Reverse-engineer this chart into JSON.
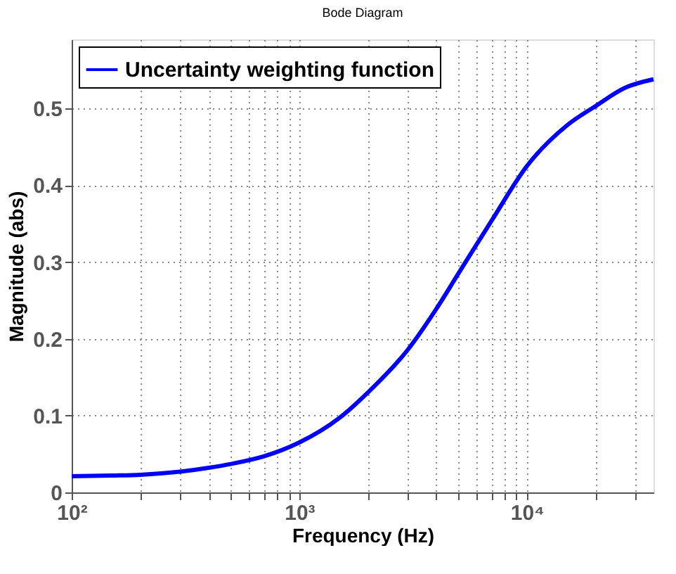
{
  "chart_data": {
    "type": "line",
    "title": "Bode Diagram",
    "xlabel": "Frequency  (Hz)",
    "ylabel": "Magnitude (abs)",
    "x": [
      100,
      150,
      200,
      300,
      400,
      500,
      700,
      1000,
      1500,
      2000,
      3000,
      4000,
      5000,
      7000,
      10000,
      15000,
      20000,
      27000,
      36000
    ],
    "series": [
      {
        "name": "Uncertainty weighting function",
        "color": "#0000ff",
        "values": [
          0.021,
          0.022,
          0.023,
          0.027,
          0.032,
          0.037,
          0.047,
          0.065,
          0.097,
          0.13,
          0.186,
          0.239,
          0.285,
          0.354,
          0.425,
          0.478,
          0.503,
          0.527,
          0.538
        ]
      }
    ],
    "log": "x",
    "xlim": [
      100,
      36000
    ],
    "ylim": [
      0,
      0.59
    ],
    "xticks": [
      {
        "value": 100,
        "label": "10²"
      },
      {
        "value": 200,
        "label": null
      },
      {
        "value": 300,
        "label": null
      },
      {
        "value": 400,
        "label": null
      },
      {
        "value": 500,
        "label": null
      },
      {
        "value": 600,
        "label": null
      },
      {
        "value": 700,
        "label": null
      },
      {
        "value": 800,
        "label": null
      },
      {
        "value": 900,
        "label": null
      },
      {
        "value": 1000,
        "label": "10³"
      },
      {
        "value": 2000,
        "label": null
      },
      {
        "value": 3000,
        "label": null
      },
      {
        "value": 4000,
        "label": null
      },
      {
        "value": 5000,
        "label": null
      },
      {
        "value": 6000,
        "label": null
      },
      {
        "value": 7000,
        "label": null
      },
      {
        "value": 8000,
        "label": null
      },
      {
        "value": 9000,
        "label": null
      },
      {
        "value": 10000,
        "label": "10⁴"
      },
      {
        "value": 20000,
        "label": null
      },
      {
        "value": 30000,
        "label": null
      }
    ],
    "yticks": [
      0,
      0.1,
      0.2,
      0.3,
      0.4,
      0.5
    ],
    "grid": true,
    "legend": "top left",
    "line_style": "solid",
    "marker": "none"
  }
}
